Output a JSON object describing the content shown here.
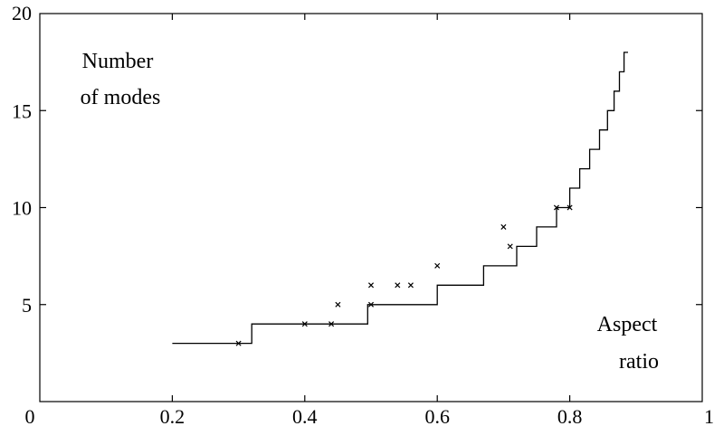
{
  "chart_data": {
    "type": "line",
    "title": "",
    "xlabel": "",
    "ylabel": "",
    "xlim": [
      0,
      1
    ],
    "ylim": [
      0,
      20
    ],
    "x_ticks": [
      0,
      0.2,
      0.4,
      0.6,
      0.8,
      1
    ],
    "x_tick_labels": [
      "0",
      "0.2",
      "0.4",
      "0.6",
      "0.8",
      "1"
    ],
    "y_ticks": [
      5,
      10,
      15,
      20
    ],
    "y_tick_labels": [
      "5",
      "10",
      "15",
      "20"
    ],
    "grid": false,
    "annotations": [
      {
        "lines": [
          "Number",
          "of modes"
        ],
        "position": "top-left"
      },
      {
        "lines": [
          "Aspect",
          "ratio"
        ],
        "position": "bottom-right"
      }
    ],
    "series": [
      {
        "type": "step",
        "x": [
          0.2,
          0.32,
          0.32,
          0.495,
          0.495,
          0.6,
          0.6,
          0.67,
          0.67,
          0.72,
          0.72,
          0.75,
          0.75,
          0.78,
          0.78,
          0.8,
          0.8,
          0.815,
          0.815,
          0.83,
          0.83,
          0.845,
          0.845,
          0.857,
          0.857,
          0.867,
          0.867,
          0.875,
          0.875,
          0.882,
          0.882,
          0.888
        ],
        "y": [
          3,
          3,
          4,
          4,
          5,
          5,
          6,
          6,
          7,
          7,
          8,
          8,
          9,
          9,
          10,
          10,
          11,
          11,
          12,
          12,
          13,
          13,
          14,
          14,
          15,
          15,
          16,
          16,
          17,
          17,
          18,
          18
        ]
      },
      {
        "type": "scatter",
        "marker": "x",
        "x": [
          0.3,
          0.4,
          0.44,
          0.45,
          0.5,
          0.5,
          0.54,
          0.56,
          0.6,
          0.7,
          0.71,
          0.78,
          0.8
        ],
        "y": [
          3,
          4,
          4,
          5,
          5,
          6,
          6,
          6,
          7,
          9,
          8,
          10,
          10
        ]
      }
    ]
  }
}
